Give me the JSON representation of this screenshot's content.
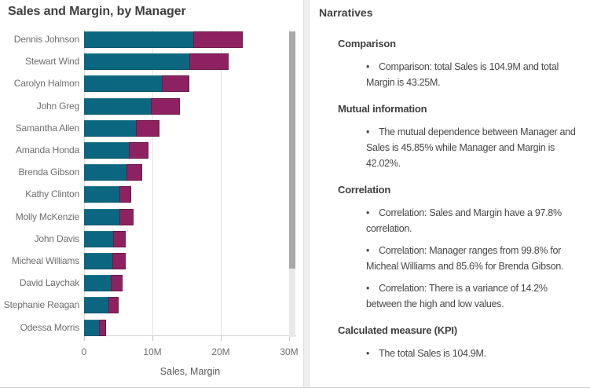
{
  "chart": {
    "title": "Sales and Margin, by Manager",
    "x_axis": {
      "ticks": [
        "0",
        "10M",
        "20M",
        "30M"
      ],
      "tick_values": [
        0,
        10,
        20,
        30
      ],
      "label": "Sales, Margin"
    },
    "colors": {
      "sales": "#0b6780",
      "margin": "#8e2260"
    },
    "scrollbar": {
      "visible": true
    }
  },
  "chart_data": {
    "type": "bar",
    "orientation": "horizontal",
    "stacked": true,
    "title": "Sales and Margin, by Manager",
    "xlabel": "Sales, Margin",
    "units": "millions",
    "xlim": [
      0,
      30
    ],
    "grid": true,
    "legend": "none",
    "categories": [
      "Dennis Johnson",
      "Stewart Wind",
      "Carolyn Halmon",
      "John Greg",
      "Samantha Allen",
      "Amanda Honda",
      "Brenda Gibson",
      "Kathy Clinton",
      "Molly McKenzie",
      "John Davis",
      "Micheal Williams",
      "David Laychak",
      "Stephanie Reagan",
      "Odessa Morris"
    ],
    "series": [
      {
        "name": "Sales",
        "values": [
          16.0,
          15.4,
          11.4,
          9.8,
          7.6,
          6.5,
          6.2,
          5.2,
          5.2,
          4.2,
          4.1,
          3.9,
          3.6,
          2.2
        ]
      },
      {
        "name": "Margin",
        "values": [
          7.2,
          5.7,
          4.0,
          4.3,
          3.4,
          2.9,
          2.3,
          1.7,
          2.1,
          1.8,
          1.9,
          1.7,
          1.5,
          1.0
        ]
      }
    ]
  },
  "narratives": {
    "title": "Narratives",
    "sections": [
      {
        "heading": "Comparison",
        "bullets": [
          "Comparison: total Sales is 104.9M and total Margin is 43.25M."
        ]
      },
      {
        "heading": "Mutual information",
        "bullets": [
          "The mutual dependence between Manager and Sales is 45.85% while Manager and Margin is 42.02%."
        ]
      },
      {
        "heading": "Correlation",
        "bullets": [
          "Correlation: Sales and Margin have a 97.8% correlation.",
          "Correlation: Manager ranges from 99.8% for Micheal Williams and 85.6% for Brenda Gibson.",
          "Correlation: There is a variance of 14.2% between the high and low values."
        ]
      },
      {
        "heading": "Calculated measure (KPI)",
        "bullets": [
          "The total Sales is 104.9M."
        ]
      }
    ]
  }
}
